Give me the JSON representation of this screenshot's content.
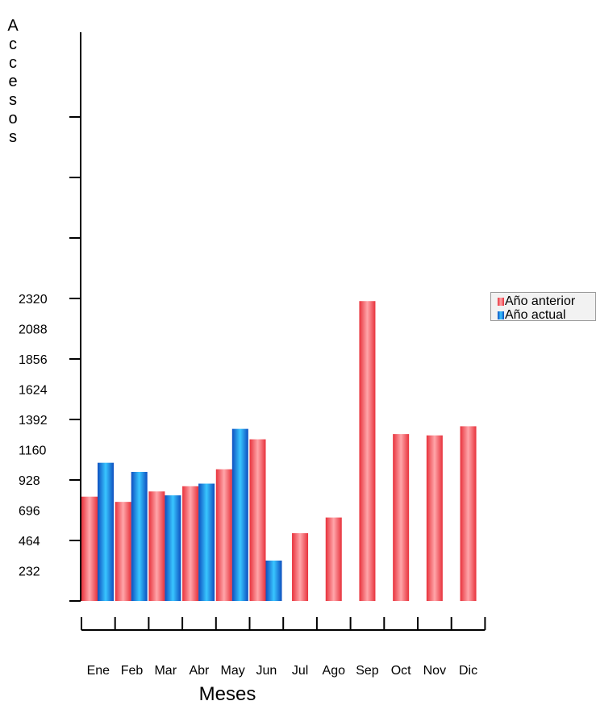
{
  "chart_data": {
    "type": "bar",
    "title": "",
    "xlabel": "Meses",
    "ylabel": "Accesos",
    "categories": [
      "Ene",
      "Feb",
      "Mar",
      "Abr",
      "May",
      "Jun",
      "Jul",
      "Ago",
      "Sep",
      "Oct",
      "Nov",
      "Dic"
    ],
    "y_ticks": [
      "232",
      "464",
      "696",
      "928",
      "1160",
      "1392",
      "1624",
      "1856",
      "2088",
      "2320"
    ],
    "ylim": [
      0,
      3712
    ],
    "series": [
      {
        "name": "Año anterior",
        "color": "#e8323c",
        "values": [
          800,
          760,
          840,
          880,
          1010,
          1240,
          520,
          640,
          2300,
          1280,
          1270,
          1340
        ]
      },
      {
        "name": "Año actual",
        "color": "#1462d6",
        "values": [
          1060,
          990,
          810,
          900,
          1320,
          310,
          null,
          null,
          null,
          null,
          null,
          null
        ]
      }
    ],
    "legend_position": "right",
    "grid": false
  }
}
